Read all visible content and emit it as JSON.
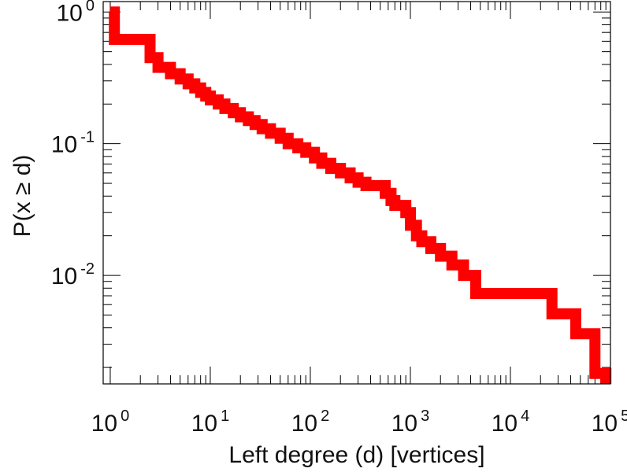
{
  "chart_data": {
    "type": "line",
    "step": true,
    "xlabel": "Left degree (d) [vertices]",
    "ylabel": "P(x ≥ d)",
    "xscale": "log",
    "yscale": "log",
    "xlim": [
      0.85,
      100000
    ],
    "ylim": [
      0.0015,
      1.2
    ],
    "grid": false,
    "line_color": "#ff0000",
    "x_tick_labels": [
      {
        "base": "10",
        "exp": "0"
      },
      {
        "base": "10",
        "exp": "1"
      },
      {
        "base": "10",
        "exp": "2"
      },
      {
        "base": "10",
        "exp": "3"
      },
      {
        "base": "10",
        "exp": "4"
      },
      {
        "base": "10",
        "exp": "5"
      }
    ],
    "y_tick_labels": [
      {
        "base": "10",
        "exp": "0"
      },
      {
        "base": "10",
        "exp": "-1"
      },
      {
        "base": "10",
        "exp": "-2"
      }
    ],
    "series": [
      {
        "x": [
          1,
          1.1,
          2,
          2.5,
          3,
          4,
          5,
          6,
          7,
          8,
          9,
          10,
          12,
          14,
          17,
          20,
          24,
          28,
          33,
          40,
          50,
          60,
          75,
          90,
          110,
          130,
          160,
          200,
          250,
          300,
          360,
          450,
          560,
          640,
          700,
          800,
          900,
          1000,
          1150,
          1300,
          1600,
          2000,
          2600,
          3400,
          4500,
          10000,
          20000,
          26000,
          45000,
          70000,
          90000
        ],
        "y": [
          1.0,
          0.62,
          0.62,
          0.45,
          0.38,
          0.34,
          0.31,
          0.285,
          0.265,
          0.245,
          0.23,
          0.215,
          0.2,
          0.185,
          0.172,
          0.16,
          0.15,
          0.14,
          0.13,
          0.12,
          0.11,
          0.1,
          0.093,
          0.086,
          0.078,
          0.071,
          0.065,
          0.06,
          0.055,
          0.051,
          0.048,
          0.048,
          0.042,
          0.037,
          0.034,
          0.034,
          0.03,
          0.024,
          0.02,
          0.018,
          0.016,
          0.014,
          0.012,
          0.01,
          0.0073,
          0.0073,
          0.0073,
          0.0051,
          0.0036,
          0.0018,
          0.0015
        ]
      }
    ]
  }
}
